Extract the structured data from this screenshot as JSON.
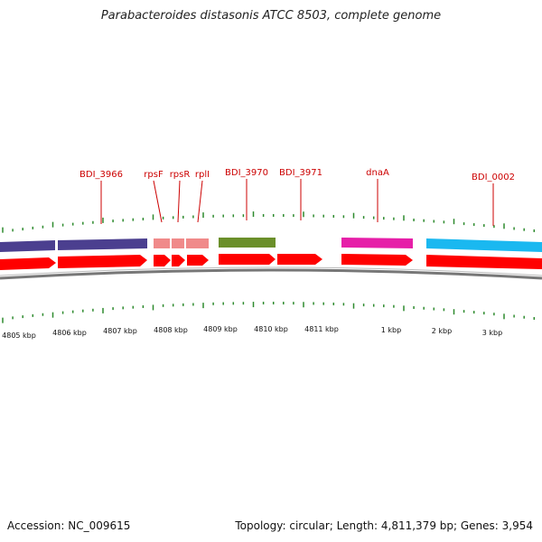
{
  "title": "Parabacteroides distasonis ATCC 8503, complete genome",
  "footer": {
    "accession": "Accession: NC_009615",
    "summary": "Topology: circular; Length: 4,811,379 bp; Genes: 3,954"
  },
  "diagram": {
    "genes": [
      {
        "name": "BDI_3966",
        "color": "#4b3f8f"
      },
      {
        "name": "rpsF",
        "color": "#f08a8a"
      },
      {
        "name": "rpsR",
        "color": "#f08a8a"
      },
      {
        "name": "rplI",
        "color": "#f08a8a"
      },
      {
        "name": "BDI_3970",
        "color": "#6b8f2a"
      },
      {
        "name": "BDI_3971",
        "color": "#ff0000"
      },
      {
        "name": "dnaA",
        "color": "#e61fa8"
      },
      {
        "name": "BDI_0002",
        "color": "#1ab8f0"
      }
    ],
    "ticks": [
      "4805 kbp",
      "4806 kbp",
      "4807 kbp",
      "4808 kbp",
      "4809 kbp",
      "4810 kbp",
      "4811 kbp",
      "1 kbp",
      "2 kbp",
      "3 kbp"
    ],
    "colors": {
      "label": "#cc0000",
      "arrow": "#ff0000",
      "tick": "#2e8b2e",
      "backbone": "#777777"
    }
  }
}
